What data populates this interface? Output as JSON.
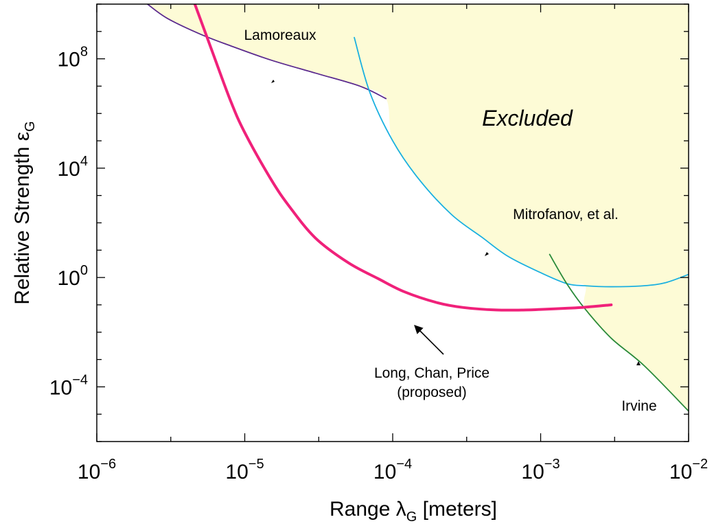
{
  "chart_data": {
    "type": "line",
    "x_scale": "log",
    "y_scale": "log",
    "xlim": [
      1e-06,
      0.01
    ],
    "ylim": [
      1e-06,
      10000000000.0
    ],
    "xlabel": {
      "main": "Range ",
      "symbol": "λ",
      "sub": "G",
      "suffix": " [meters]"
    },
    "ylabel": {
      "main": "Relative Strength ",
      "symbol": "ε",
      "sub": "G"
    },
    "x_ticks": [
      {
        "base": "10",
        "exp": "−6"
      },
      {
        "base": "10",
        "exp": "−5"
      },
      {
        "base": "10",
        "exp": "−4"
      },
      {
        "base": "10",
        "exp": "−3"
      },
      {
        "base": "10",
        "exp": "−2"
      }
    ],
    "y_ticks": [
      {
        "base": "10",
        "exp": "8"
      },
      {
        "base": "10",
        "exp": "4"
      },
      {
        "base": "10",
        "exp": "0"
      },
      {
        "base": "10",
        "exp": "−4"
      }
    ],
    "region_label": "Excluded",
    "colors": {
      "excluded_fill": "#fdfbd6",
      "lamoreaux": "#5b2a8e",
      "mitrofanov": "#1ab0e0",
      "irvine": "#2a8a3a",
      "proposed": "#f0217a"
    },
    "series": [
      {
        "name": "Lamoreaux",
        "x": [
          2.2e-06,
          3e-06,
          5e-06,
          8e-06,
          1.5e-05,
          3e-05,
          6e-05,
          9e-05
        ],
        "y": [
          10000000000.0,
          3000000000.0,
          800000000.0,
          300000000.0,
          90000000.0,
          30000000.0,
          10000000.0,
          3500000.0
        ]
      },
      {
        "name": "Mitrofanov, et al.",
        "x": [
          5.5e-05,
          7e-05,
          0.0001,
          0.00015,
          0.00025,
          0.0004,
          0.0006,
          0.001,
          0.0015,
          0.002,
          0.003,
          0.005,
          0.007,
          0.01
        ],
        "y": [
          600000000.0,
          6000000.0,
          100000.0,
          4000.0,
          200.0,
          30,
          6,
          1.5,
          0.6,
          0.5,
          0.46,
          0.5,
          0.65,
          1.3
        ]
      },
      {
        "name": "Irvine",
        "x": [
          0.00115,
          0.0015,
          0.002,
          0.003,
          0.005,
          0.01
        ],
        "y": [
          7,
          0.6,
          0.07,
          0.006,
          0.0006,
          1.3e-05
        ]
      },
      {
        "name": "Long, Chan, Price (proposed)",
        "x": [
          4.6e-06,
          6e-06,
          8e-06,
          1e-05,
          1.5e-05,
          2e-05,
          3e-05,
          5e-05,
          8e-05,
          0.00012,
          0.0002,
          0.0003,
          0.0005,
          0.0008,
          0.001,
          0.0015,
          0.002,
          0.003
        ],
        "y": [
          10000000000.0,
          200000000.0,
          3000000.0,
          200000.0,
          4000.0,
          400.0,
          28,
          3.5,
          0.9,
          0.3,
          0.12,
          0.08,
          0.065,
          0.065,
          0.068,
          0.075,
          0.082,
          0.1
        ]
      }
    ],
    "annotations": [
      {
        "lines": [
          "Lamoreaux"
        ],
        "arrow": false
      },
      {
        "lines": [
          "Mitrofanov, et al."
        ],
        "arrow": false
      },
      {
        "lines": [
          "Irvine"
        ],
        "arrow": false
      },
      {
        "lines": [
          "Long, Chan, Price",
          "(proposed)"
        ],
        "arrow": true
      }
    ]
  }
}
